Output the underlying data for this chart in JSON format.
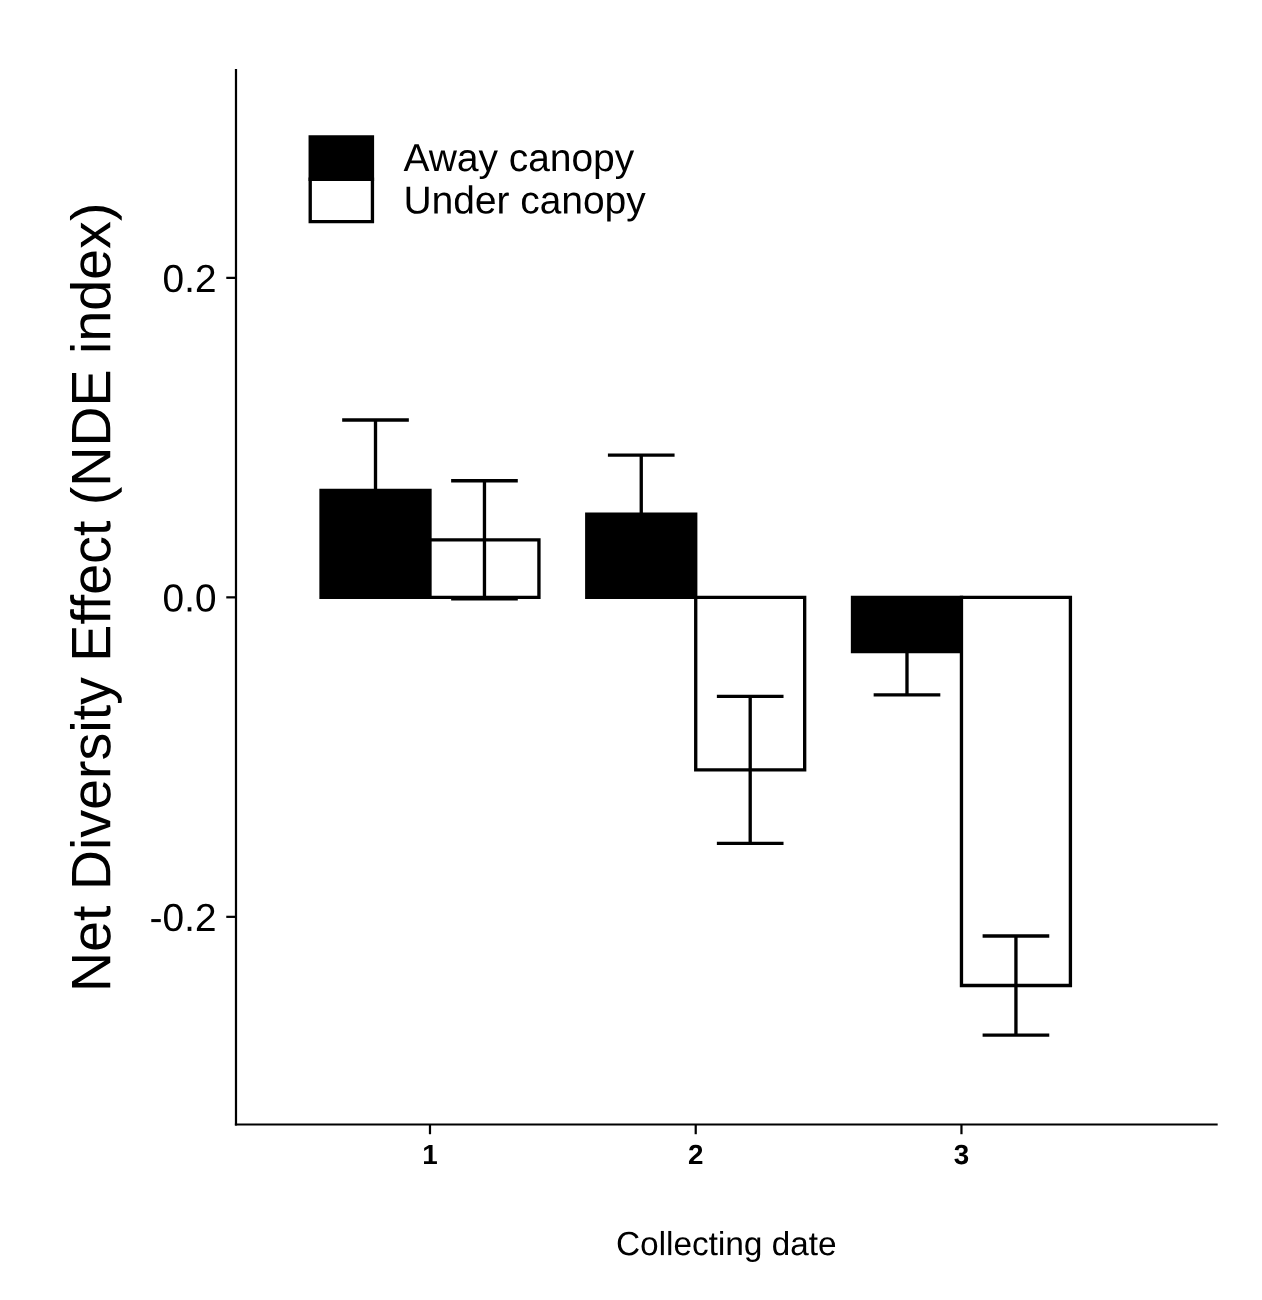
{
  "chart_data": {
    "type": "bar",
    "xlabel": "Collecting date",
    "ylabel": "Net Diversity Effect (NDE index)",
    "categories": [
      "1",
      "2",
      "3"
    ],
    "series": [
      {
        "name": "Away canopy",
        "color": "#000000",
        "values": [
          0.067,
          0.052,
          -0.034
        ],
        "errors": [
          0.044,
          0.037,
          0.027
        ]
      },
      {
        "name": "Under canopy",
        "color": "#ffffff",
        "values": [
          0.036,
          -0.108,
          -0.243
        ],
        "errors": [
          0.037,
          0.046,
          0.031
        ]
      }
    ],
    "ylim": [
      -0.33,
      0.33
    ],
    "yticks": [
      {
        "value": -0.2,
        "label": "-0.2"
      },
      {
        "value": 0.0,
        "label": "0.0"
      },
      {
        "value": 0.2,
        "label": "0.2"
      }
    ],
    "legend": "top left",
    "grid": false
  }
}
